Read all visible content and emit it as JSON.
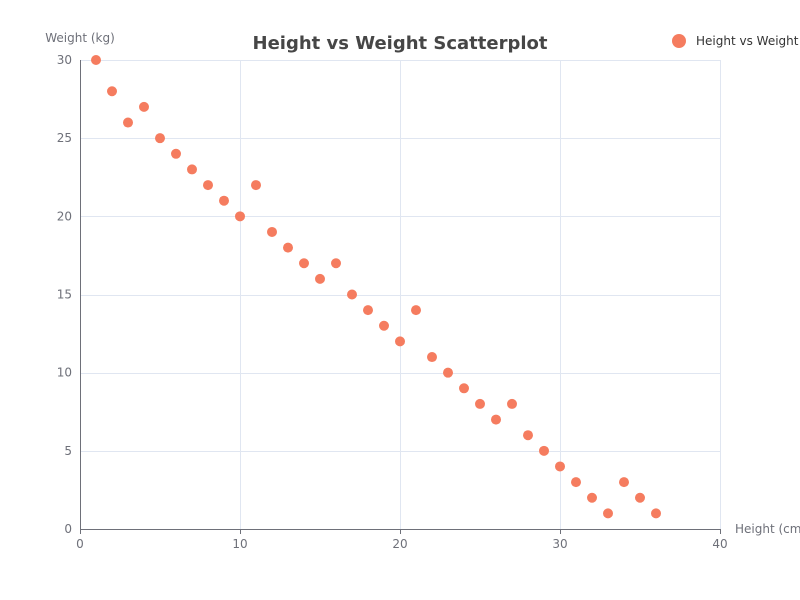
{
  "chart_data": {
    "type": "scatter",
    "title": "Height vs Weight Scatterplot",
    "xlabel": "Height (cm)",
    "ylabel": "Weight (kg)",
    "xlim": [
      0,
      40
    ],
    "ylim": [
      0,
      30
    ],
    "x_ticks": [
      0,
      10,
      20,
      30,
      40
    ],
    "y_ticks": [
      0,
      5,
      10,
      15,
      20,
      25,
      30
    ],
    "grid": true,
    "legend_position": "top-right",
    "series": [
      {
        "name": "Height vs Weight",
        "color": "#f57c5f",
        "points": [
          [
            1,
            30
          ],
          [
            2,
            28
          ],
          [
            3,
            26
          ],
          [
            4,
            27
          ],
          [
            5,
            25
          ],
          [
            6,
            24
          ],
          [
            7,
            23
          ],
          [
            8,
            22
          ],
          [
            9,
            21
          ],
          [
            10,
            20
          ],
          [
            11,
            22
          ],
          [
            12,
            19
          ],
          [
            13,
            18
          ],
          [
            14,
            17
          ],
          [
            15,
            16
          ],
          [
            16,
            17
          ],
          [
            17,
            15
          ],
          [
            18,
            14
          ],
          [
            19,
            13
          ],
          [
            20,
            12
          ],
          [
            21,
            14
          ],
          [
            22,
            11
          ],
          [
            23,
            10
          ],
          [
            24,
            9
          ],
          [
            25,
            8
          ],
          [
            26,
            7
          ],
          [
            27,
            8
          ],
          [
            28,
            6
          ],
          [
            29,
            5
          ],
          [
            30,
            4
          ],
          [
            31,
            3
          ],
          [
            32,
            2
          ],
          [
            33,
            1
          ],
          [
            34,
            3
          ],
          [
            35,
            2
          ],
          [
            36,
            1
          ]
        ]
      }
    ]
  }
}
